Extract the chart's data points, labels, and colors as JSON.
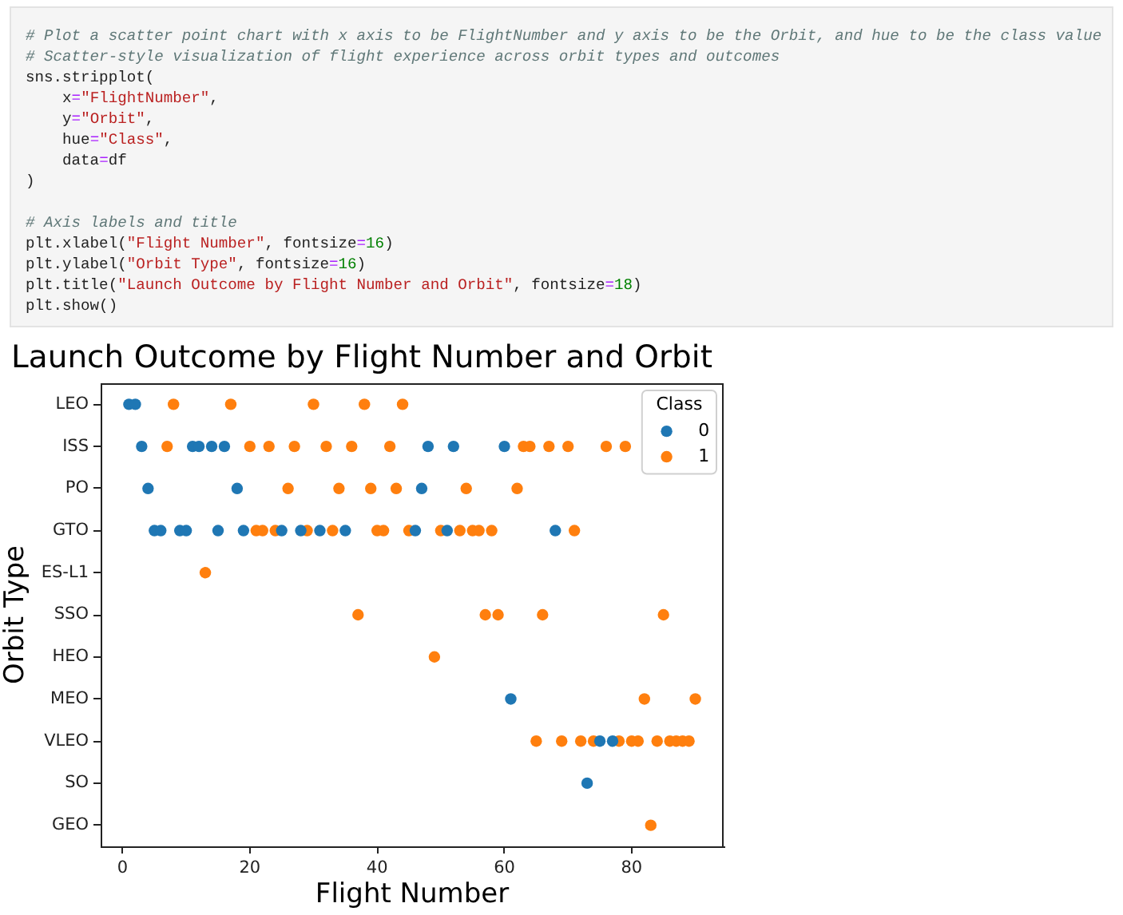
{
  "chart_data": {
    "type": "scatter",
    "title": "Launch Outcome by Flight Number and Orbit",
    "xlabel": "Flight Number",
    "ylabel": "Orbit Type",
    "legend_title": "Class",
    "annotations": [
      "# Plot a scatter point chart with x axis to be FlightNumber and y axis to be the Orbit, and hue to be the class value\n# Scatter-style visualization of flight experience across orbit types and outcomes\nsns.stripplot(\n    x=\"FlightNumber\",\n    y=\"Orbit\",\n    hue=\"Class\",\n    data=df\n)\n\n# Axis labels and title\nplt.xlabel(\"Flight Number\", fontsize=16)\nplt.ylabel(\"Orbit Type\", fontsize=16)\nplt.title(\"Launch Outcome by Flight Number and Orbit\", fontsize=18)\nplt.show()"
    ],
    "orientation": "horizontal",
    "categories": [
      "LEO",
      "ISS",
      "PO",
      "GTO",
      "ES-L1",
      "SSO",
      "HEO",
      "MEO",
      "VLEO",
      "SO",
      "GEO"
    ],
    "xlim": [
      -3.45,
      94.45
    ],
    "xticks": [
      0,
      20,
      40,
      60,
      80
    ],
    "series": [
      {
        "name": "0",
        "color": "#1f77b4",
        "x": [
          "LEO",
          "LEO",
          "ISS",
          "PO",
          "GTO",
          "GTO",
          "GTO",
          "GTO",
          "ISS",
          "ISS",
          "ISS",
          "GTO",
          "ISS",
          "PO",
          "GTO",
          "GTO",
          "GTO",
          "GTO",
          "GTO",
          "GTO",
          "PO",
          "ISS",
          "GTO",
          "ISS",
          "ISS",
          "MEO",
          "GTO",
          "SO",
          "VLEO",
          "VLEO"
        ],
        "values": [
          1,
          2,
          3,
          4,
          5,
          6,
          9,
          10,
          11,
          12,
          14,
          15,
          16,
          18,
          19,
          25,
          28,
          31,
          35,
          46,
          47,
          48,
          51,
          52,
          60,
          61,
          68,
          73,
          75,
          77
        ]
      },
      {
        "name": "1",
        "color": "#ff7f0e",
        "x": [
          "ISS",
          "LEO",
          "ES-L1",
          "LEO",
          "ISS",
          "GTO",
          "GTO",
          "ISS",
          "GTO",
          "PO",
          "ISS",
          "GTO",
          "LEO",
          "ISS",
          "GTO",
          "PO",
          "ISS",
          "SSO",
          "LEO",
          "PO",
          "GTO",
          "GTO",
          "ISS",
          "PO",
          "LEO",
          "GTO",
          "HEO",
          "GTO",
          "GTO",
          "PO",
          "GTO",
          "GTO",
          "SSO",
          "GTO",
          "SSO",
          "PO",
          "ISS",
          "ISS",
          "VLEO",
          "SSO",
          "ISS",
          "VLEO",
          "ISS",
          "GTO",
          "VLEO",
          "VLEO",
          "ISS",
          "VLEO",
          "ISS",
          "VLEO",
          "VLEO",
          "MEO",
          "GEO",
          "VLEO",
          "SSO",
          "VLEO",
          "VLEO",
          "VLEO",
          "VLEO",
          "MEO"
        ],
        "values": [
          7,
          8,
          13,
          17,
          20,
          21,
          22,
          23,
          24,
          26,
          27,
          29,
          30,
          32,
          33,
          34,
          36,
          37,
          38,
          39,
          40,
          41,
          42,
          43,
          44,
          45,
          49,
          50,
          53,
          54,
          55,
          56,
          57,
          58,
          59,
          62,
          63,
          64,
          65,
          66,
          67,
          69,
          70,
          71,
          72,
          74,
          76,
          78,
          79,
          80,
          81,
          82,
          83,
          84,
          85,
          86,
          87,
          88,
          89,
          90
        ]
      }
    ],
    "legend": "top right",
    "grid": false,
    "marker": "circle"
  }
}
